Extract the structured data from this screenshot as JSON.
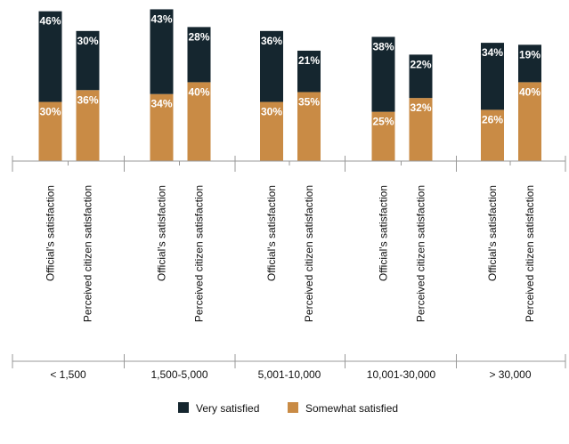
{
  "colors": {
    "very_satisfied": "#15262f",
    "somewhat_satisfied": "#c98b45",
    "axis": "#999999",
    "label_text": "#ffffff",
    "text": "#111111"
  },
  "chart_data": {
    "type": "bar",
    "stacked": true,
    "groups": [
      "< 1,500",
      "1,500-5,000",
      "5,001-10,000",
      "10,001-30,000",
      "> 30,000"
    ],
    "subcategories": [
      "Official's satisfaction",
      "Perceived citizen satisfaction"
    ],
    "series": [
      {
        "name": "Somewhat satisfied",
        "color": "#c98b45",
        "values": [
          [
            30,
            36
          ],
          [
            34,
            40
          ],
          [
            30,
            35
          ],
          [
            25,
            32
          ],
          [
            26,
            40
          ]
        ],
        "labels": [
          [
            "30%",
            "36%"
          ],
          [
            "34%",
            "40%"
          ],
          [
            "30%",
            "35%"
          ],
          [
            "25%",
            "32%"
          ],
          [
            "26%",
            "40%"
          ]
        ]
      },
      {
        "name": "Very satisfied",
        "color": "#15262f",
        "values": [
          [
            46,
            30
          ],
          [
            43,
            28
          ],
          [
            36,
            21
          ],
          [
            38,
            22
          ],
          [
            34,
            19
          ]
        ],
        "labels": [
          [
            "46%",
            "30%"
          ],
          [
            "43%",
            "28%"
          ],
          [
            "36%",
            "21%"
          ],
          [
            "38%",
            "22%"
          ],
          [
            "34%",
            "19%"
          ]
        ]
      }
    ],
    "legend": {
      "position": "bottom-center",
      "items": [
        "Very satisfied",
        "Somewhat satisfied"
      ]
    },
    "ylim": [
      0,
      80
    ],
    "grid": false
  }
}
